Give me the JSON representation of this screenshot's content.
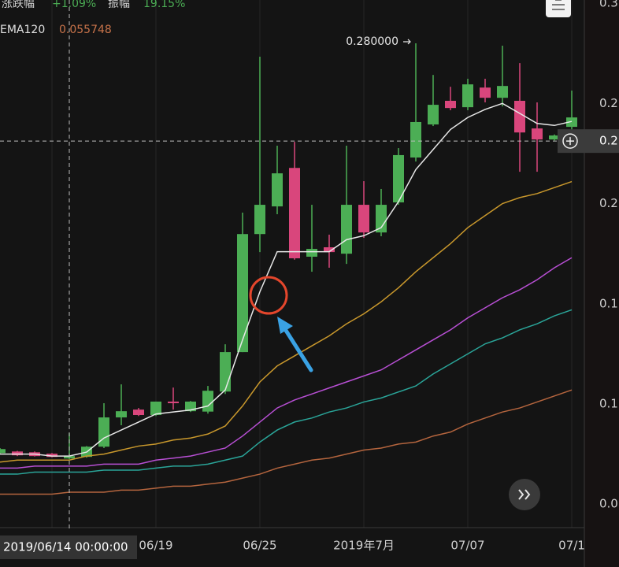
{
  "header": {
    "change_label": "涨跌幅",
    "change": "+1.09%",
    "amplitude_label": "振幅",
    "amplitude": "19.15%",
    "indicator": "EMA120",
    "indicator_value": 0.055748
  },
  "chart_data": {
    "type": "candlestick",
    "categories": [
      null,
      null,
      null,
      null,
      null,
      null,
      null,
      null,
      null,
      "06/19",
      null,
      null,
      null,
      null,
      null,
      "06/25",
      null,
      null,
      null,
      null,
      null,
      "2019年7月",
      null,
      null,
      null,
      null,
      null,
      "07/07",
      null,
      null,
      null,
      null,
      null,
      "07/1"
    ],
    "open": [
      0.0755,
      0.0763,
      0.0759,
      0.0752,
      0.0728,
      0.0736,
      0.0787,
      0.0933,
      0.0972,
      0.0945,
      0.1012,
      0.0964,
      0.0962,
      0.1062,
      0.1259,
      0.1848,
      0.1986,
      0.2178,
      0.1735,
      0.1782,
      0.175,
      0.1994,
      0.1856,
      0.2006,
      0.223,
      0.2395,
      0.2513,
      0.2481,
      0.2579,
      0.2528,
      0.2513,
      0.2375,
      0.232,
      0.2383
    ],
    "high": [
      0.078,
      0.0766,
      0.0763,
      0.0755,
      0.0854,
      0.079,
      0.1004,
      0.1098,
      0.098,
      0.1012,
      0.1082,
      0.1015,
      0.109,
      0.1298,
      0.1955,
      0.2733,
      0.2289,
      0.2308,
      0.1994,
      0.1845,
      0.2289,
      0.2112,
      0.2073,
      0.2277,
      0.28,
      0.2642,
      0.2583,
      0.2623,
      0.2623,
      0.2788,
      0.2701,
      0.2505,
      0.2345,
      0.2564
    ],
    "low": [
      0.075,
      0.074,
      0.0738,
      0.0734,
      0.0724,
      0.0732,
      0.078,
      0.0894,
      0.094,
      0.094,
      0.0972,
      0.096,
      0.0952,
      0.105,
      0.1259,
      0.1758,
      0.1947,
      0.172,
      0.166,
      0.168,
      0.1699,
      0.1829,
      0.1837,
      0.1994,
      0.221,
      0.2387,
      0.2466,
      0.2466,
      0.2505,
      0.2485,
      0.2159,
      0.2159,
      0.2315,
      0.2367
    ],
    "close": [
      0.0775,
      0.0744,
      0.074,
      0.0736,
      0.074,
      0.0787,
      0.0933,
      0.0964,
      0.0945,
      0.1012,
      0.1004,
      0.1012,
      0.1066,
      0.1259,
      0.1848,
      0.1994,
      0.2151,
      0.1727,
      0.1774,
      0.1758,
      0.1994,
      0.1856,
      0.1994,
      0.2242,
      0.2407,
      0.2493,
      0.2477,
      0.2595,
      0.2528,
      0.2587,
      0.2355,
      0.232,
      0.234,
      0.243
    ],
    "up_color": "#4cae55",
    "down_color": "#d9467c",
    "lines": [
      {
        "color": "#e8e8e8",
        "values": [
          0.075,
          0.075,
          0.075,
          0.074,
          0.074,
          0.076,
          0.083,
          0.087,
          0.091,
          0.095,
          0.096,
          0.097,
          0.099,
          0.107,
          0.132,
          0.156,
          0.176,
          0.176,
          0.176,
          0.176,
          0.182,
          0.184,
          0.188,
          0.201,
          0.217,
          0.227,
          0.237,
          0.243,
          0.247,
          0.25,
          0.245,
          0.24,
          0.239,
          0.241
        ]
      },
      {
        "color": "#c9982c",
        "values": [
          0.071,
          0.072,
          0.072,
          0.072,
          0.072,
          0.074,
          0.075,
          0.077,
          0.079,
          0.08,
          0.082,
          0.083,
          0.085,
          0.089,
          0.099,
          0.111,
          0.119,
          0.124,
          0.129,
          0.134,
          0.14,
          0.145,
          0.151,
          0.158,
          0.166,
          0.173,
          0.18,
          0.188,
          0.194,
          0.2,
          0.203,
          0.205,
          0.208,
          0.211
        ]
      },
      {
        "color": "#b84fd4",
        "values": [
          0.068,
          0.068,
          0.069,
          0.069,
          0.069,
          0.069,
          0.07,
          0.07,
          0.07,
          0.072,
          0.073,
          0.074,
          0.076,
          0.078,
          0.084,
          0.091,
          0.098,
          0.102,
          0.105,
          0.108,
          0.111,
          0.114,
          0.117,
          0.122,
          0.127,
          0.132,
          0.137,
          0.143,
          0.148,
          0.153,
          0.157,
          0.162,
          0.168,
          0.173
        ]
      },
      {
        "color": "#2aa599",
        "values": [
          0.065,
          0.065,
          0.066,
          0.066,
          0.066,
          0.066,
          0.067,
          0.067,
          0.067,
          0.068,
          0.069,
          0.069,
          0.07,
          0.072,
          0.074,
          0.081,
          0.087,
          0.091,
          0.093,
          0.096,
          0.098,
          0.101,
          0.103,
          0.106,
          0.109,
          0.115,
          0.12,
          0.125,
          0.13,
          0.133,
          0.137,
          0.14,
          0.144,
          0.147
        ]
      },
      {
        "name": "EMA120",
        "color": "#b5653e",
        "values": [
          0.055,
          0.055,
          0.055,
          0.055,
          0.056,
          0.056,
          0.056,
          0.057,
          0.057,
          0.058,
          0.059,
          0.059,
          0.06,
          0.061,
          0.063,
          0.065,
          0.068,
          0.07,
          0.072,
          0.073,
          0.075,
          0.077,
          0.078,
          0.08,
          0.081,
          0.084,
          0.086,
          0.09,
          0.093,
          0.096,
          0.098,
          0.101,
          0.104,
          0.107
        ]
      }
    ],
    "ylim": [
      0.0383,
      0.3016
    ],
    "yticks": [
      {
        "value": 0.3,
        "label": "0.3"
      },
      {
        "value": 0.25,
        "label": "0.2"
      },
      {
        "value": 0.2,
        "label": "0.2"
      },
      {
        "value": 0.15,
        "label": "0.1"
      },
      {
        "value": 0.1,
        "label": "0.1"
      },
      {
        "value": 0.05,
        "label": "0.0"
      }
    ],
    "grid": true,
    "max_label": "0.280000",
    "crosshair": {
      "date_label": "2019/06/14 00:00:00",
      "price": 0.2312,
      "price_label": "0.2"
    }
  }
}
